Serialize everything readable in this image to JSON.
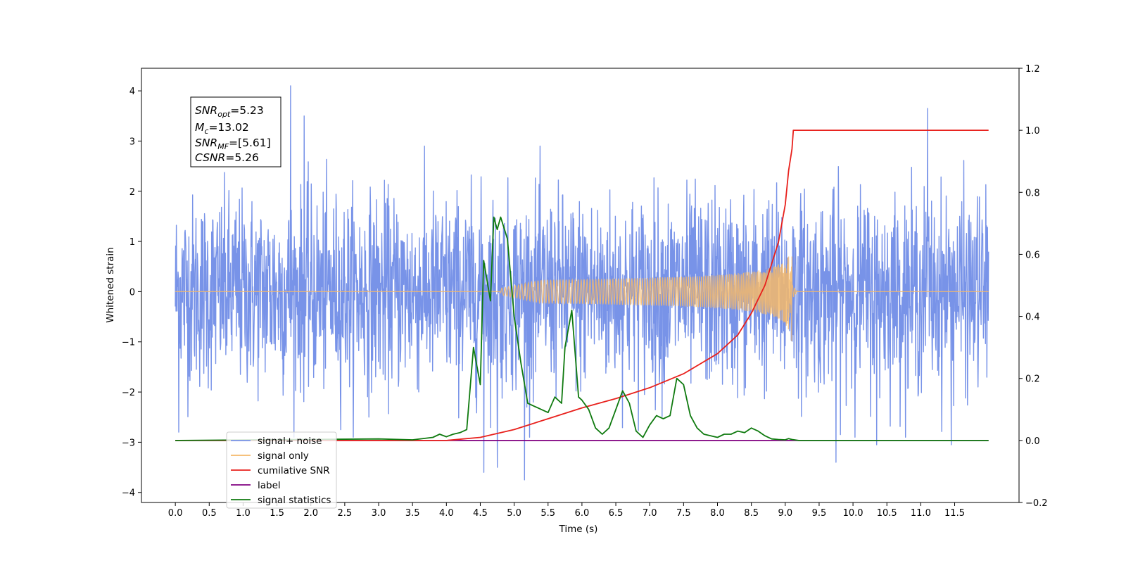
{
  "chart_data": {
    "type": "line",
    "xlabel": "Time (s)",
    "ylabel": "Whitened strain",
    "xlim": [
      -0.5,
      12.45
    ],
    "ylim": [
      -4.2,
      4.45
    ],
    "ylim_right": [
      -0.2,
      1.2
    ],
    "x_ticks": [
      "0.0",
      "0.5",
      "1.0",
      "1.5",
      "2.0",
      "2.5",
      "3.0",
      "3.5",
      "4.0",
      "4.5",
      "5.0",
      "5.5",
      "6.0",
      "6.5",
      "7.0",
      "7.5",
      "8.0",
      "8.5",
      "9.0",
      "9.5",
      "10.0",
      "10.5",
      "11.0",
      "11.5"
    ],
    "y_ticks_left": [
      "4",
      "3",
      "2",
      "1",
      "0",
      "−1",
      "−2",
      "−3",
      "−4"
    ],
    "y_ticks_right": [
      "1.2",
      "1.0",
      "0.8",
      "0.6",
      "0.4",
      "0.2",
      "0.0",
      "−0.2"
    ],
    "legend_position": "lower-left",
    "annotation": {
      "snr_opt": {
        "sym": "SNR",
        "sub": "opt",
        "val": "=5.23"
      },
      "mc": {
        "sym": "M",
        "sub": "c",
        "val": "=13.02"
      },
      "snr_mf": {
        "sym": "SNR",
        "sub": "MF",
        "val": "=[5.61]"
      },
      "csnr": {
        "sym": "CSNR",
        "sub": "",
        "val": "=5.26"
      }
    },
    "series": [
      {
        "name": "signal+ noise",
        "color": "#7893e8",
        "axis": "left",
        "kind": "noise",
        "x_range": [
          0,
          12
        ],
        "approx_std": 0.95,
        "spikes": [
          [
            1.7,
            4.1
          ],
          [
            11.1,
            3.65
          ],
          [
            1.9,
            3.5
          ],
          [
            5.15,
            -3.75
          ],
          [
            4.55,
            -3.6
          ],
          [
            4.75,
            -3.5
          ],
          [
            9.75,
            -3.4
          ],
          [
            0.05,
            -2.8
          ],
          [
            10.35,
            -3.05
          ],
          [
            11.45,
            -3.05
          ]
        ]
      },
      {
        "name": "signal only",
        "color": "#f5b86a",
        "axis": "left",
        "kind": "chirp",
        "t_start": 4.8,
        "t_merge": 9.1,
        "peak_amplitude": 0.7
      },
      {
        "name": "cumilative SNR",
        "color": "#e8201c",
        "axis": "right",
        "x": [
          0,
          4.0,
          4.5,
          5.0,
          5.5,
          6.0,
          6.5,
          7.0,
          7.5,
          8.0,
          8.3,
          8.5,
          8.7,
          8.9,
          9.0,
          9.05,
          9.1,
          9.12,
          12.0
        ],
        "y": [
          0.0,
          0.0,
          0.01,
          0.035,
          0.07,
          0.105,
          0.135,
          0.17,
          0.215,
          0.28,
          0.34,
          0.41,
          0.5,
          0.64,
          0.76,
          0.87,
          0.94,
          1.0,
          1.0
        ]
      },
      {
        "name": "label",
        "color": "#800080",
        "axis": "right",
        "x": [
          0,
          12
        ],
        "y": [
          0,
          0
        ]
      },
      {
        "name": "signal statistics",
        "color": "#0f7a0f",
        "axis": "right",
        "x": [
          0,
          3.0,
          3.5,
          3.8,
          3.9,
          4.0,
          4.1,
          4.2,
          4.3,
          4.4,
          4.5,
          4.55,
          4.65,
          4.7,
          4.75,
          4.8,
          4.9,
          5.0,
          5.1,
          5.2,
          5.3,
          5.4,
          5.5,
          5.6,
          5.7,
          5.75,
          5.85,
          5.95,
          6.0,
          6.1,
          6.2,
          6.3,
          6.4,
          6.5,
          6.6,
          6.7,
          6.8,
          6.9,
          7.0,
          7.1,
          7.2,
          7.3,
          7.4,
          7.5,
          7.6,
          7.7,
          7.8,
          7.9,
          8.0,
          8.1,
          8.2,
          8.3,
          8.4,
          8.5,
          8.6,
          8.7,
          8.8,
          8.9,
          9.0,
          9.05,
          9.1,
          9.2,
          12.0
        ],
        "y": [
          0.0,
          0.005,
          0.002,
          0.01,
          0.02,
          0.012,
          0.02,
          0.025,
          0.035,
          0.3,
          0.18,
          0.58,
          0.45,
          0.72,
          0.68,
          0.72,
          0.65,
          0.4,
          0.25,
          0.12,
          0.11,
          0.1,
          0.09,
          0.14,
          0.12,
          0.3,
          0.42,
          0.14,
          0.13,
          0.1,
          0.04,
          0.02,
          0.04,
          0.1,
          0.16,
          0.12,
          0.03,
          0.01,
          0.05,
          0.08,
          0.07,
          0.08,
          0.2,
          0.18,
          0.08,
          0.04,
          0.02,
          0.015,
          0.01,
          0.02,
          0.02,
          0.03,
          0.025,
          0.04,
          0.03,
          0.015,
          0.005,
          0.003,
          0.002,
          0.006,
          0.003,
          0.0,
          0.0
        ]
      }
    ]
  }
}
